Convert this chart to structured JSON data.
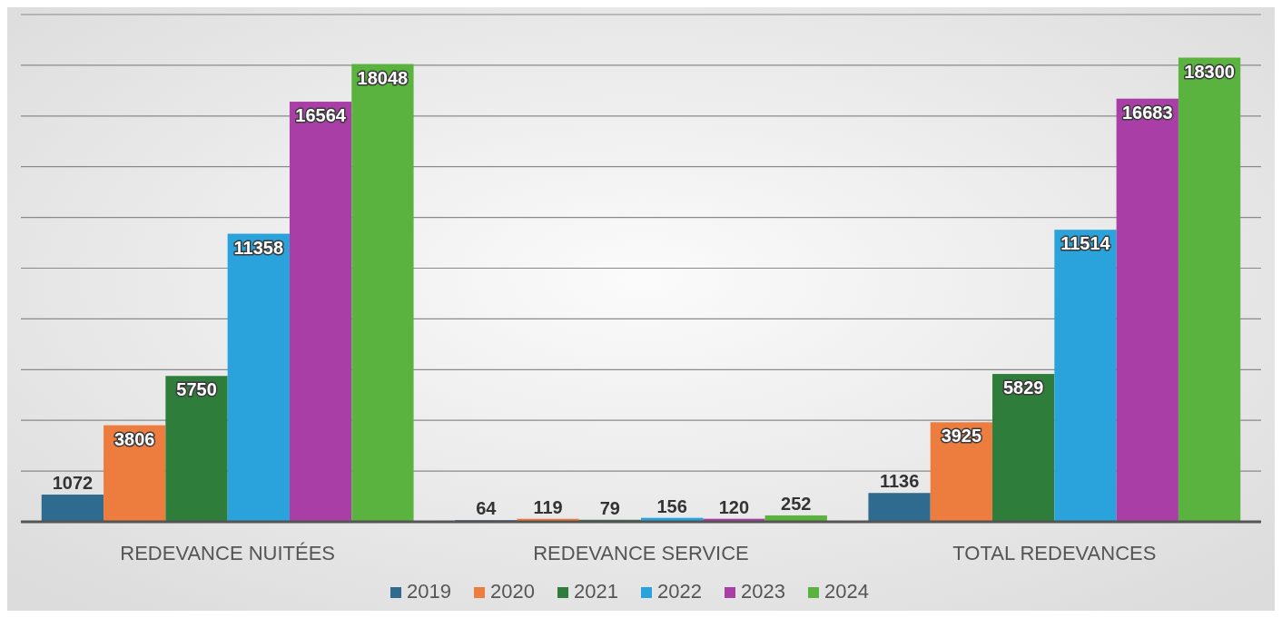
{
  "chart_data": {
    "type": "bar",
    "categories": [
      "REDEVANCE NUITÉES",
      "REDEVANCE SERVICE",
      "TOTAL REDEVANCES"
    ],
    "series": [
      {
        "name": "2019",
        "color": "#2e6b8f",
        "values": [
          1072,
          64,
          1136
        ]
      },
      {
        "name": "2020",
        "color": "#ed7d3f",
        "values": [
          3806,
          119,
          3925
        ]
      },
      {
        "name": "2021",
        "color": "#2e7d3a",
        "values": [
          5750,
          79,
          5829
        ]
      },
      {
        "name": "2022",
        "color": "#2aa3dc",
        "values": [
          11358,
          156,
          11514
        ]
      },
      {
        "name": "2023",
        "color": "#a93fa6",
        "values": [
          16564,
          120,
          16683
        ]
      },
      {
        "name": "2024",
        "color": "#5ab33e",
        "values": [
          18048,
          252,
          18300
        ]
      }
    ],
    "ylim": [
      0,
      20000
    ],
    "yticks": [
      {
        "value": 0,
        "label": null
      },
      {
        "value": 2000,
        "label": null
      },
      {
        "value": 4000,
        "label": null
      },
      {
        "value": 6000,
        "label": null
      },
      {
        "value": 8000,
        "label": null
      },
      {
        "value": 10000,
        "label": null
      },
      {
        "value": 12000,
        "label": null
      },
      {
        "value": 14000,
        "label": null
      },
      {
        "value": 16000,
        "label": null
      },
      {
        "value": 18000,
        "label": null
      },
      {
        "value": 20000,
        "label": null
      }
    ],
    "grid": "y",
    "tick_labels": "x",
    "data_labels": true,
    "legend": "bottom"
  }
}
